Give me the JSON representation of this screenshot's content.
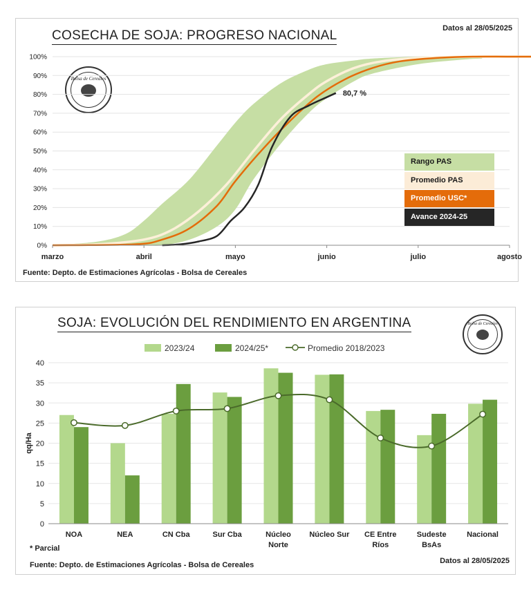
{
  "progress_chart": {
    "title": "COSECHA DE SOJA: PROGRESO NACIONAL",
    "date_label": "Datos al 28/05/2025",
    "source": "Fuente: Depto. de Estimaciones Agrícolas - Bolsa de Cereales",
    "logo_text": "Bolsa de Cereales",
    "annotation": "80,7 %",
    "legend": [
      {
        "label": "Rango PAS",
        "bg": "#c6dea4",
        "fg": "#1a1a1a"
      },
      {
        "label": "Promedio PAS",
        "bg": "#fcecd7",
        "fg": "#1a1a1a"
      },
      {
        "label": "Promedio  USC*",
        "bg": "#e46c0a",
        "fg": "#ffffff"
      },
      {
        "label": "Avance 2024-25",
        "bg": "#262626",
        "fg": "#ffffff"
      }
    ],
    "colors": {
      "range": "#c6dea4",
      "avg_pas": "#fdf0d9",
      "avg_usc": "#e46c0a",
      "current": "#262626"
    }
  },
  "yield_chart": {
    "title": "SOJA: EVOLUCIÓN DEL RENDIMIENTO EN ARGENTINA",
    "date_label": "Datos al 28/05/2025",
    "source": "Fuente: Depto. de Estimaciones Agrícolas - Bolsa de Cereales",
    "footnote": "* Parcial",
    "logo_text": "Bolsa de Cereales",
    "legend": [
      "2023/24",
      "2024/25*",
      "Promedio 2018/2023"
    ],
    "colors": {
      "s2324": "#b3d88c",
      "s2425": "#6b9e3f",
      "avg": "#4a6a2a"
    }
  },
  "chart_data": [
    {
      "type": "area",
      "title": "COSECHA DE SOJA: PROGRESO NACIONAL",
      "x_ticks": [
        "marzo",
        "abril",
        "mayo",
        "junio",
        "julio",
        "agosto"
      ],
      "y_ticks": [
        "0%",
        "10%",
        "20%",
        "30%",
        "40%",
        "50%",
        "60%",
        "70%",
        "80%",
        "90%",
        "100%"
      ],
      "ylim": [
        0,
        100
      ],
      "x_unit": "months since start of marzo",
      "series": [
        {
          "name": "Rango PAS",
          "x": [
            0,
            0.5,
            0.8,
            1.0,
            1.2,
            1.5,
            1.8,
            2.0,
            2.2,
            2.5,
            2.8,
            3.0,
            3.3,
            3.5,
            4.0,
            4.5,
            4.7
          ],
          "upper": [
            0,
            2,
            6,
            13,
            22,
            35,
            53,
            65,
            75,
            86,
            93,
            96,
            98,
            99,
            100,
            100,
            100
          ],
          "lower": [
            0,
            0,
            0,
            0,
            0,
            3,
            10,
            19,
            35,
            54,
            70,
            78,
            87,
            91,
            96,
            98.5,
            99
          ]
        },
        {
          "name": "Promedio PAS",
          "x": [
            0,
            0.5,
            1.0,
            1.3,
            1.6,
            1.9,
            2.2,
            2.5,
            2.8,
            3.0,
            3.3,
            3.6,
            4.0,
            4.5,
            5.0,
            5.4
          ],
          "y": [
            0,
            0.5,
            3,
            8,
            18,
            32,
            50,
            67,
            80,
            87,
            94,
            97.5,
            99.3,
            99.9,
            100,
            100
          ]
        },
        {
          "name": "Promedio  USC*",
          "x": [
            0,
            0.9,
            1.2,
            1.5,
            1.8,
            2.0,
            2.3,
            2.6,
            2.9,
            3.2,
            3.5,
            3.8,
            4.2,
            4.6,
            5.0,
            5.5
          ],
          "y": [
            0,
            0.5,
            3,
            9,
            21,
            34,
            51,
            66,
            79,
            88,
            94,
            97.5,
            99.3,
            100,
            100,
            100
          ]
        },
        {
          "name": "Avance 2024-25",
          "x": [
            1.2,
            1.4,
            1.6,
            1.8,
            1.95,
            2.1,
            2.25,
            2.4,
            2.6,
            2.8,
            3.0,
            3.1
          ],
          "y": [
            0,
            0.5,
            2,
            5,
            13,
            20,
            32,
            52,
            68,
            74,
            78.5,
            80.7
          ]
        }
      ]
    },
    {
      "type": "bar",
      "title": "SOJA: EVOLUCIÓN DEL RENDIMIENTO EN ARGENTINA",
      "categories": [
        "NOA",
        "NEA",
        "CN Cba",
        "Sur Cba",
        "Núcleo Norte",
        "Núcleo Sur",
        "CE Entre Ríos",
        "Sudeste BsAs",
        "Nacional"
      ],
      "category_lines": [
        [
          "NOA"
        ],
        [
          "NEA"
        ],
        [
          "CN Cba"
        ],
        [
          "Sur Cba"
        ],
        [
          "Núcleo",
          "Norte"
        ],
        [
          "Núcleo Sur"
        ],
        [
          "CE Entre",
          "Ríos"
        ],
        [
          "Sudeste",
          "BsAs"
        ],
        [
          "Nacional"
        ]
      ],
      "ylabel": "qq/Ha",
      "ylim": [
        0,
        40
      ],
      "y_ticks": [
        "0",
        "5",
        "10",
        "15",
        "20",
        "25",
        "30",
        "35",
        "40"
      ],
      "series": [
        {
          "name": "2023/24",
          "values": [
            27.0,
            20.0,
            27.3,
            32.6,
            38.6,
            37.0,
            28.0,
            22.0,
            29.8
          ]
        },
        {
          "name": "2024/25*",
          "values": [
            24.0,
            12.0,
            34.7,
            31.5,
            37.5,
            37.1,
            28.3,
            27.3,
            30.8
          ]
        },
        {
          "name": "Promedio 2018/2023",
          "values": [
            25.1,
            24.4,
            28.0,
            28.6,
            31.8,
            30.8,
            21.3,
            19.3,
            27.2
          ]
        }
      ]
    }
  ]
}
